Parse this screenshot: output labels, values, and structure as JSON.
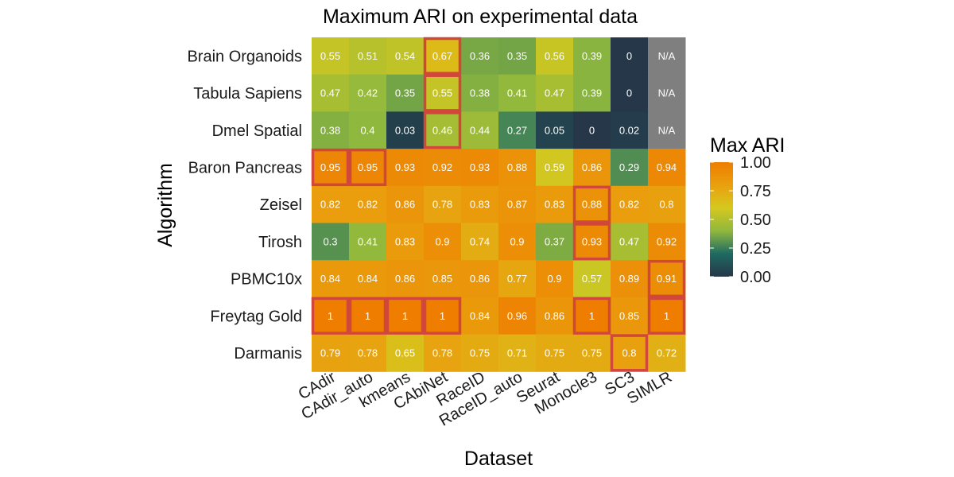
{
  "chart_data": {
    "type": "heatmap",
    "title": "Maximum ARI on experimental data",
    "xlabel": "Dataset",
    "ylabel": "Algorithm",
    "x_categories": [
      "CAdir",
      "CAdir_auto",
      "kmeans",
      "CAbiNet",
      "RaceID",
      "RaceID_auto",
      "Seurat",
      "Monocle3",
      "SC3",
      "SIMLR"
    ],
    "y_categories": [
      "Brain Organoids",
      "Tabula Sapiens",
      "Dmel Spatial",
      "Baron Pancreas",
      "Zeisel",
      "Tirosh",
      "PBMC10x",
      "Freytag Gold",
      "Darmanis"
    ],
    "values": [
      [
        0.55,
        0.51,
        0.54,
        0.67,
        0.36,
        0.35,
        0.56,
        0.39,
        0,
        null
      ],
      [
        0.47,
        0.42,
        0.35,
        0.55,
        0.38,
        0.41,
        0.47,
        0.39,
        0,
        null
      ],
      [
        0.38,
        0.4,
        0.03,
        0.46,
        0.44,
        0.27,
        0.05,
        0,
        0.02,
        null
      ],
      [
        0.95,
        0.95,
        0.93,
        0.92,
        0.93,
        0.88,
        0.59,
        0.86,
        0.29,
        0.94
      ],
      [
        0.82,
        0.82,
        0.86,
        0.78,
        0.83,
        0.87,
        0.83,
        0.88,
        0.82,
        0.8
      ],
      [
        0.3,
        0.41,
        0.83,
        0.9,
        0.74,
        0.9,
        0.37,
        0.93,
        0.47,
        0.92
      ],
      [
        0.84,
        0.84,
        0.86,
        0.85,
        0.86,
        0.77,
        0.9,
        0.57,
        0.89,
        0.91
      ],
      [
        1,
        1,
        1,
        1,
        0.84,
        0.96,
        0.86,
        1,
        0.85,
        1
      ],
      [
        0.79,
        0.78,
        0.65,
        0.78,
        0.75,
        0.71,
        0.75,
        0.75,
        0.8,
        0.72
      ]
    ],
    "labels": [
      [
        "0.55",
        "0.51",
        "0.54",
        "0.67",
        "0.36",
        "0.35",
        "0.56",
        "0.39",
        "0",
        "N/A"
      ],
      [
        "0.47",
        "0.42",
        "0.35",
        "0.55",
        "0.38",
        "0.41",
        "0.47",
        "0.39",
        "0",
        "N/A"
      ],
      [
        "0.38",
        "0.4",
        "0.03",
        "0.46",
        "0.44",
        "0.27",
        "0.05",
        "0",
        "0.02",
        "N/A"
      ],
      [
        "0.95",
        "0.95",
        "0.93",
        "0.92",
        "0.93",
        "0.88",
        "0.59",
        "0.86",
        "0.29",
        "0.94"
      ],
      [
        "0.82",
        "0.82",
        "0.86",
        "0.78",
        "0.83",
        "0.87",
        "0.83",
        "0.88",
        "0.82",
        "0.8"
      ],
      [
        "0.3",
        "0.41",
        "0.83",
        "0.9",
        "0.74",
        "0.9",
        "0.37",
        "0.93",
        "0.47",
        "0.92"
      ],
      [
        "0.84",
        "0.84",
        "0.86",
        "0.85",
        "0.86",
        "0.77",
        "0.9",
        "0.57",
        "0.89",
        "0.91"
      ],
      [
        "1",
        "1",
        "1",
        "1",
        "0.84",
        "0.96",
        "0.86",
        "1",
        "0.85",
        "1"
      ],
      [
        "0.79",
        "0.78",
        "0.65",
        "0.78",
        "0.75",
        "0.71",
        "0.75",
        "0.75",
        "0.8",
        "0.72"
      ]
    ],
    "highlighted_max": [
      [
        0,
        3
      ],
      [
        1,
        3
      ],
      [
        2,
        3
      ],
      [
        3,
        0
      ],
      [
        3,
        1
      ],
      [
        4,
        7
      ],
      [
        5,
        7
      ],
      [
        6,
        9
      ],
      [
        7,
        0
      ],
      [
        7,
        1
      ],
      [
        7,
        2
      ],
      [
        7,
        3
      ],
      [
        7,
        7
      ],
      [
        7,
        9
      ],
      [
        8,
        8
      ]
    ],
    "legend": {
      "title": "Max ARI",
      "range": [
        0,
        1
      ],
      "ticks": [
        "0.00",
        "0.25",
        "0.50",
        "0.75",
        "1.00"
      ],
      "tick_values": [
        0,
        0.25,
        0.5,
        0.75,
        1
      ]
    },
    "colors": {
      "gradient": [
        "#253748",
        "#1e6a62",
        "#8fb83e",
        "#d5c81e",
        "#e9a00e",
        "#ee7d00"
      ],
      "na": "#7f7f7f",
      "highlight": "#d2473b",
      "label_text": "#ffffff"
    }
  }
}
